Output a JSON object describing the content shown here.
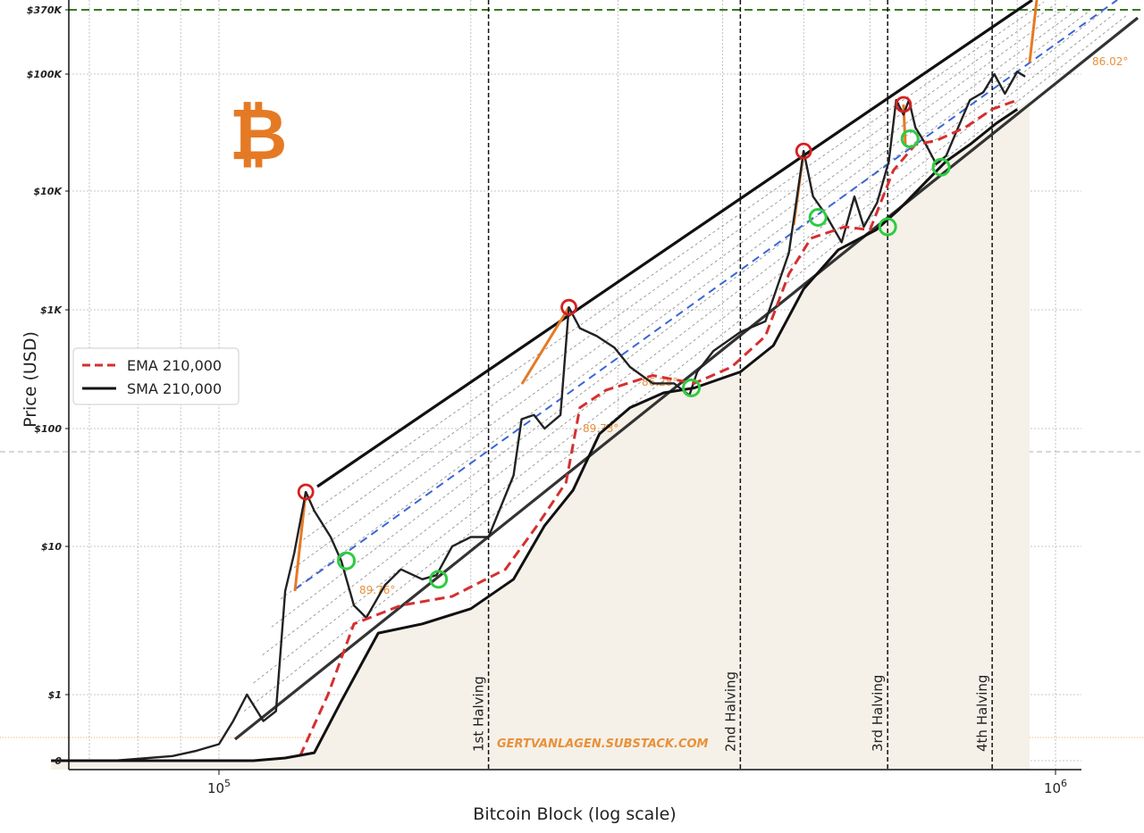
{
  "chart_data": {
    "type": "line",
    "xlabel": "Bitcoin Block (log scale)",
    "ylabel": "Price (USD)",
    "x_scale": "log",
    "y_scale": "log",
    "xlim": [
      63000,
      1100000
    ],
    "x_ticks": [
      {
        "label": "10^5",
        "value": 100000
      },
      {
        "label": "10^6",
        "value": 1000000
      }
    ],
    "y_ticks": [
      {
        "label": "$370K",
        "value": 370000
      },
      {
        "label": "$100K",
        "value": 100000
      },
      {
        "label": "$10K",
        "value": 10000
      },
      {
        "label": "$1K",
        "value": 1000
      },
      {
        "label": "$100",
        "value": 100
      },
      {
        "label": "$10",
        "value": 10
      },
      {
        "label": "$1",
        "value": 1
      },
      {
        "label": "0",
        "value": 0
      }
    ],
    "grid": true,
    "legend": {
      "position": "center-left",
      "entries": [
        {
          "label": "EMA 210,000",
          "color": "#d62f2f",
          "style": "dashed"
        },
        {
          "label": "SMA 210,000",
          "color": "#111111",
          "style": "solid"
        }
      ]
    },
    "series": [
      {
        "name": "price",
        "color": "#222222",
        "points": [
          [
            63000,
            0.0
          ],
          [
            75000,
            0.0
          ],
          [
            88000,
            0.07
          ],
          [
            94000,
            0.15
          ],
          [
            100000,
            0.25
          ],
          [
            104000,
            0.6
          ],
          [
            108000,
            1.0
          ],
          [
            113000,
            0.6
          ],
          [
            117000,
            0.75
          ],
          [
            120000,
            5
          ],
          [
            123000,
            9
          ],
          [
            127000,
            29
          ],
          [
            130000,
            20
          ],
          [
            136000,
            12
          ],
          [
            140000,
            8
          ],
          [
            145000,
            4
          ],
          [
            150000,
            3.3
          ],
          [
            158000,
            5.5
          ],
          [
            165000,
            7
          ],
          [
            175000,
            6
          ],
          [
            182000,
            6.4
          ],
          [
            190000,
            10
          ],
          [
            200000,
            12
          ],
          [
            210000,
            12
          ],
          [
            225000,
            40
          ],
          [
            230000,
            120
          ],
          [
            238000,
            130
          ],
          [
            245000,
            100
          ],
          [
            256000,
            130
          ],
          [
            262000,
            1050
          ],
          [
            270000,
            700
          ],
          [
            283000,
            600
          ],
          [
            297000,
            480
          ],
          [
            310000,
            330
          ],
          [
            330000,
            240
          ],
          [
            350000,
            240
          ],
          [
            365000,
            190
          ],
          [
            373000,
            300
          ],
          [
            390000,
            450
          ],
          [
            420000,
            650
          ],
          [
            450000,
            800
          ],
          [
            480000,
            3000
          ],
          [
            500000,
            22000
          ],
          [
            513000,
            9000
          ],
          [
            530000,
            6500
          ],
          [
            555000,
            3700
          ],
          [
            575000,
            9000
          ],
          [
            590000,
            5000
          ],
          [
            612000,
            8000
          ],
          [
            632000,
            18000
          ],
          [
            645000,
            60000
          ],
          [
            658000,
            45000
          ],
          [
            668000,
            60000
          ],
          [
            680000,
            35000
          ],
          [
            700000,
            25000
          ],
          [
            720000,
            17000
          ],
          [
            740000,
            20000
          ],
          [
            765000,
            35000
          ],
          [
            790000,
            60000
          ],
          [
            820000,
            70000
          ],
          [
            845000,
            100000
          ],
          [
            870000,
            68000
          ],
          [
            900000,
            105000
          ],
          [
            920000,
            95000
          ]
        ]
      },
      {
        "name": "EMA 210,000",
        "color": "#d62f2f",
        "style": "dashed",
        "points": [
          [
            125000,
            0.07
          ],
          [
            135000,
            1.0
          ],
          [
            145000,
            3.0
          ],
          [
            165000,
            4.0
          ],
          [
            190000,
            4.6
          ],
          [
            220000,
            7
          ],
          [
            240000,
            15
          ],
          [
            260000,
            35
          ],
          [
            270000,
            150
          ],
          [
            290000,
            210
          ],
          [
            330000,
            280
          ],
          [
            370000,
            240
          ],
          [
            410000,
            330
          ],
          [
            450000,
            600
          ],
          [
            480000,
            2000
          ],
          [
            510000,
            4000
          ],
          [
            560000,
            5000
          ],
          [
            600000,
            4700
          ],
          [
            640000,
            15000
          ],
          [
            680000,
            25000
          ],
          [
            720000,
            27000
          ],
          [
            780000,
            35000
          ],
          [
            840000,
            50000
          ],
          [
            900000,
            60000
          ]
        ]
      },
      {
        "name": "SMA 210,000",
        "color": "#111111",
        "style": "solid",
        "points": [
          [
            63000,
            0.0
          ],
          [
            90000,
            0.0
          ],
          [
            110000,
            0.0
          ],
          [
            120000,
            0.04
          ],
          [
            130000,
            0.12
          ],
          [
            140000,
            0.9
          ],
          [
            155000,
            2.6
          ],
          [
            175000,
            3.0
          ],
          [
            200000,
            3.8
          ],
          [
            225000,
            6
          ],
          [
            245000,
            15
          ],
          [
            265000,
            30
          ],
          [
            285000,
            90
          ],
          [
            310000,
            150
          ],
          [
            340000,
            200
          ],
          [
            370000,
            220
          ],
          [
            420000,
            300
          ],
          [
            460000,
            500
          ],
          [
            500000,
            1500
          ],
          [
            550000,
            3200
          ],
          [
            610000,
            4700
          ],
          [
            650000,
            7000
          ],
          [
            700000,
            12000
          ],
          [
            740000,
            18000
          ],
          [
            790000,
            25000
          ],
          [
            850000,
            38000
          ],
          [
            900000,
            50000
          ]
        ]
      }
    ],
    "halvings": [
      {
        "label": "1st Halving",
        "block": 210000
      },
      {
        "label": "2nd Halving",
        "block": 420000
      },
      {
        "label": "3rd Halving",
        "block": 630000
      },
      {
        "label": "4th Halving",
        "block": 840000
      }
    ],
    "tops": [
      [
        127000,
        29
      ],
      [
        262000,
        1050
      ],
      [
        500000,
        22000
      ],
      [
        658000,
        55000
      ]
    ],
    "bottoms": [
      [
        142000,
        8
      ],
      [
        183000,
        6
      ],
      [
        367000,
        220
      ],
      [
        520000,
        6000
      ],
      [
        630000,
        5000
      ],
      [
        670000,
        28000
      ],
      [
        730000,
        16000
      ]
    ],
    "angle_labels": [
      "89.76°",
      "89.73°",
      "86.28°",
      "86.02°"
    ],
    "watermark": "GERTVANLAGEN.SUBSTACK.COM",
    "logo": "bitcoin-logo"
  }
}
